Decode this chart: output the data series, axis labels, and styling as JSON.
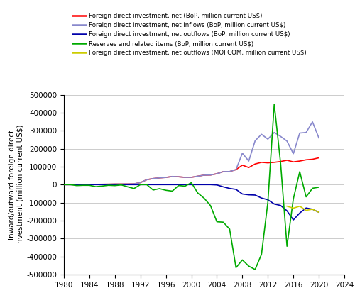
{
  "years": [
    1980,
    1981,
    1982,
    1983,
    1984,
    1985,
    1986,
    1987,
    1988,
    1989,
    1990,
    1991,
    1992,
    1993,
    1994,
    1995,
    1996,
    1997,
    1998,
    1999,
    2000,
    2001,
    2002,
    2003,
    2004,
    2005,
    2006,
    2007,
    2008,
    2009,
    2010,
    2011,
    2012,
    2013,
    2014,
    2015,
    2016,
    2017,
    2018,
    2019,
    2020
  ],
  "fdi_net": [
    0,
    0,
    430,
    636,
    1258,
    1659,
    1875,
    2314,
    3194,
    3393,
    3487,
    4366,
    11156,
    27515,
    33787,
    37521,
    40180,
    45257,
    43751,
    40319,
    40715,
    46878,
    52743,
    53505,
    60630,
    72406,
    72715,
    83521,
    108312,
    95000,
    114734,
    123985,
    121080,
    123911,
    128500,
    135610,
    126271,
    131000,
    138000,
    141000,
    149000
  ],
  "fdi_inflows": [
    0,
    0,
    430,
    636,
    1258,
    1659,
    1875,
    2314,
    3194,
    3393,
    3487,
    4366,
    11156,
    27515,
    33787,
    37521,
    40180,
    45257,
    43751,
    40319,
    40715,
    46878,
    52743,
    53505,
    60630,
    72406,
    72715,
    83521,
    175000,
    131100,
    243700,
    280000,
    253000,
    290000,
    268100,
    242000,
    172000,
    287000,
    290000,
    349000,
    260000
  ],
  "fdi_outflows_bop": [
    0,
    0,
    0,
    0,
    0,
    0,
    0,
    0,
    0,
    0,
    0,
    0,
    0,
    0,
    0,
    0,
    0,
    0,
    0,
    0,
    0,
    0,
    0,
    0,
    -1800,
    -12261,
    -21160,
    -26506,
    -52150,
    -56530,
    -57960,
    -74654,
    -84247,
    -107844,
    -116000,
    -145670,
    -196150,
    -158000,
    -130000,
    -136900,
    -153700
  ],
  "reserves": [
    0,
    0,
    -5300,
    -3800,
    -3900,
    -11400,
    -8100,
    -3700,
    -5400,
    -1600,
    -12200,
    -21700,
    0,
    0,
    -30000,
    -22500,
    -31400,
    -36200,
    -5100,
    -8600,
    10800,
    -46600,
    -75500,
    -116800,
    -206600,
    -208900,
    -247300,
    -461600,
    -418700,
    -453100,
    -472000,
    -387700,
    -98300,
    448000,
    118200,
    -342900,
    -78600,
    72000,
    -67900,
    -20300,
    -14400
  ],
  "fdi_outflows_mofcom": [
    null,
    null,
    null,
    null,
    null,
    null,
    null,
    null,
    null,
    null,
    null,
    null,
    null,
    null,
    null,
    null,
    null,
    null,
    null,
    null,
    null,
    null,
    null,
    null,
    null,
    null,
    null,
    null,
    null,
    null,
    null,
    null,
    null,
    null,
    null,
    -120000,
    -130900,
    -120100,
    -143000,
    -136900,
    -153700
  ],
  "colors": {
    "fdi_net": "#FF0000",
    "fdi_inflows": "#8888CC",
    "fdi_outflows_bop": "#0000AA",
    "reserves": "#00AA00",
    "fdi_outflows_mofcom": "#CCCC00"
  },
  "legend_labels": [
    "Foreign direct investment, net (BoP, million current US$)",
    "Foreign direct investment, net inflows (BoP, million current US$)",
    "Foreign direct investment, net outflows (BoP, million current US$)",
    "Reserves and related items (BoP, million current US$)",
    "Foreign direct investment, net outflows (MOFCOM, million current US$)"
  ],
  "ylabel": "Inward/outward foreign direct\ninvestment (million current US$)",
  "xlim": [
    1980,
    2024
  ],
  "ylim": [
    -500000,
    500000
  ],
  "xticks": [
    1980,
    1984,
    1988,
    1992,
    1996,
    2000,
    2004,
    2008,
    2012,
    2016,
    2020,
    2024
  ],
  "yticks": [
    -500000,
    -400000,
    -300000,
    -200000,
    -100000,
    0,
    100000,
    200000,
    300000,
    400000,
    500000
  ],
  "ytick_labels": [
    "-500000",
    "-400000",
    "-300000",
    "-200000",
    "-100000",
    "0",
    "100000",
    "200000",
    "300000",
    "400000",
    "500000"
  ]
}
